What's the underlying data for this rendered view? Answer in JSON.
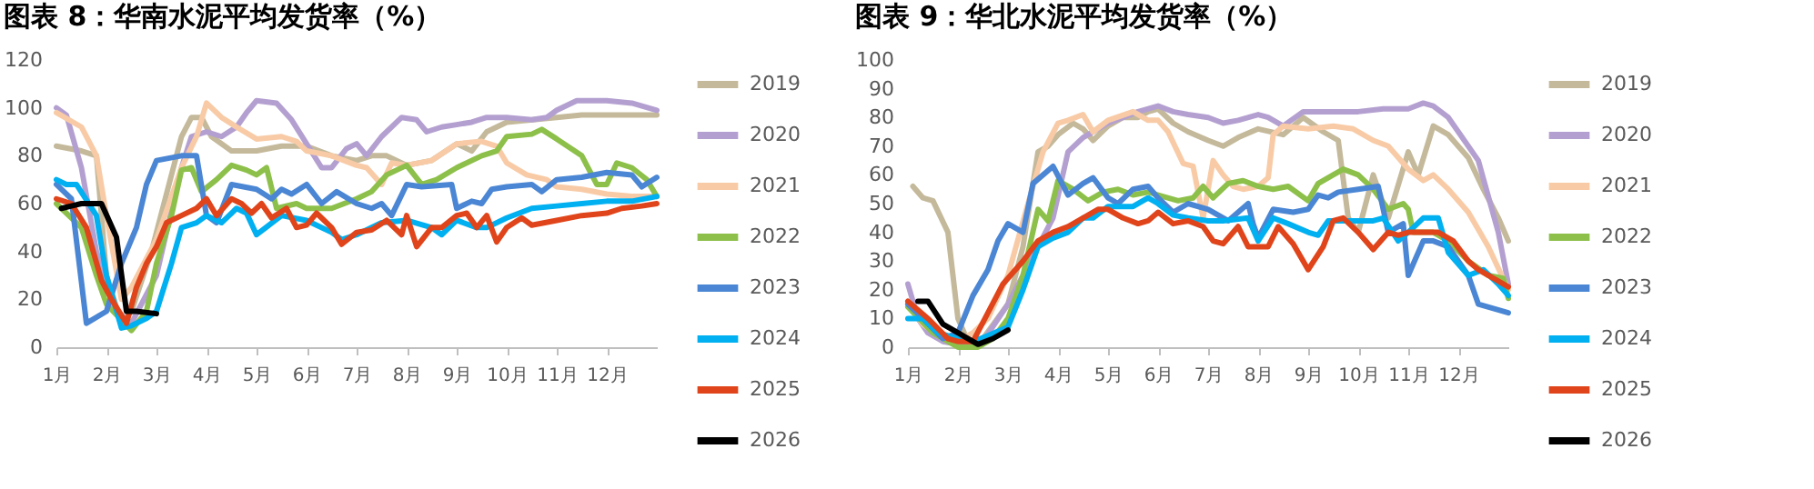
{
  "chart_data": [
    {
      "type": "line",
      "title": "图表 8：华南水泥平均发货率（%）",
      "legend": "right",
      "grid": false,
      "line_style": "solid",
      "marker": "none",
      "xlim": [
        1,
        13
      ],
      "xticks": [
        {
          "value": 1,
          "label": "1月"
        },
        {
          "value": 2,
          "label": "2月"
        },
        {
          "value": 3,
          "label": "3月"
        },
        {
          "value": 4,
          "label": "4月"
        },
        {
          "value": 5,
          "label": "5月"
        },
        {
          "value": 6,
          "label": "6月"
        },
        {
          "value": 7,
          "label": "7月"
        },
        {
          "value": 8,
          "label": "8月"
        },
        {
          "value": 9,
          "label": "9月"
        },
        {
          "value": 10,
          "label": "10月"
        },
        {
          "value": 11,
          "label": "11月"
        },
        {
          "value": 12,
          "label": "12月"
        }
      ],
      "ylim": [
        0,
        120
      ],
      "yticks": [
        0,
        20,
        40,
        60,
        80,
        100,
        120
      ],
      "series": [
        {
          "name": "2019",
          "color": "#c4b99a",
          "x": [
            1.0,
            1.5,
            1.8,
            2.0,
            2.3,
            2.5,
            2.9,
            3.5,
            3.7,
            3.9,
            4.1,
            4.5,
            5.0,
            5.5,
            6.0,
            6.5,
            7.0,
            7.3,
            7.6,
            8.0,
            8.5,
            9.0,
            9.3,
            9.6,
            10.0,
            11.0,
            11.5,
            12.0,
            12.5,
            13.0
          ],
          "values": [
            84,
            82,
            80,
            30,
            10,
            15,
            40,
            88,
            96,
            96,
            88,
            82,
            82,
            84,
            84,
            80,
            78,
            80,
            80,
            76,
            78,
            85,
            82,
            90,
            94,
            96,
            97,
            97,
            97,
            97
          ]
        },
        {
          "name": "2020",
          "color": "#b4a0d0",
          "x": [
            1.0,
            1.2,
            1.5,
            1.8,
            2.2,
            2.5,
            3.0,
            3.5,
            3.7,
            4.0,
            4.3,
            4.6,
            4.8,
            5.0,
            5.4,
            5.7,
            6.0,
            6.3,
            6.5,
            6.8,
            7.0,
            7.2,
            7.5,
            7.9,
            8.2,
            8.4,
            8.7,
            9.0,
            9.3,
            9.6,
            10.0,
            10.5,
            10.8,
            11.0,
            11.4,
            12.0,
            12.5,
            13.0
          ],
          "values": [
            100,
            97,
            75,
            40,
            15,
            10,
            30,
            75,
            88,
            90,
            88,
            92,
            98,
            103,
            102,
            95,
            85,
            75,
            75,
            83,
            85,
            80,
            88,
            96,
            95,
            90,
            92,
            93,
            94,
            96,
            96,
            95,
            96,
            99,
            103,
            103,
            102,
            99
          ]
        },
        {
          "name": "2021",
          "color": "#f8cba6",
          "x": [
            1.0,
            1.5,
            1.8,
            2.0,
            2.3,
            2.5,
            3.0,
            3.5,
            3.8,
            4.0,
            4.3,
            4.6,
            5.0,
            5.5,
            5.8,
            6.0,
            6.5,
            7.0,
            7.2,
            7.5,
            7.7,
            8.0,
            8.5,
            9.0,
            9.5,
            9.8,
            10.0,
            10.4,
            10.8,
            11.0,
            11.5,
            12.0,
            12.5,
            13.0
          ],
          "values": [
            98,
            92,
            80,
            55,
            20,
            25,
            45,
            75,
            88,
            102,
            96,
            92,
            87,
            88,
            86,
            82,
            80,
            76,
            75,
            68,
            77,
            76,
            78,
            85,
            86,
            84,
            77,
            72,
            70,
            67,
            66,
            64,
            63,
            63
          ]
        },
        {
          "name": "2022",
          "color": "#8dc04a",
          "x": [
            1.0,
            1.5,
            1.8,
            2.0,
            2.5,
            2.8,
            3.0,
            3.3,
            3.5,
            3.7,
            3.9,
            4.2,
            4.5,
            4.8,
            5.0,
            5.2,
            5.4,
            5.8,
            6.0,
            6.5,
            7.0,
            7.3,
            7.6,
            8.0,
            8.3,
            8.6,
            9.0,
            9.5,
            9.8,
            10.0,
            10.5,
            10.7,
            11.0,
            11.5,
            11.8,
            12.0,
            12.2,
            12.5,
            12.8,
            13.0
          ],
          "values": [
            60,
            50,
            30,
            18,
            7,
            15,
            35,
            55,
            74,
            75,
            65,
            70,
            76,
            74,
            72,
            75,
            58,
            60,
            58,
            58,
            62,
            65,
            72,
            76,
            68,
            70,
            75,
            80,
            82,
            88,
            89,
            91,
            87,
            80,
            68,
            68,
            77,
            75,
            70,
            63
          ]
        },
        {
          "name": "2023",
          "color": "#4a86d4",
          "x": [
            1.0,
            1.3,
            1.6,
            2.0,
            2.3,
            2.6,
            2.8,
            3.0,
            3.5,
            3.8,
            4.0,
            4.2,
            4.5,
            5.0,
            5.3,
            5.5,
            5.7,
            6.0,
            6.3,
            6.6,
            7.0,
            7.3,
            7.5,
            7.7,
            8.0,
            8.3,
            8.9,
            9.0,
            9.3,
            9.5,
            9.7,
            10.0,
            10.5,
            10.7,
            11.0,
            11.5,
            12.0,
            12.5,
            12.7,
            13.0
          ],
          "values": [
            68,
            62,
            10,
            15,
            35,
            50,
            68,
            78,
            80,
            80,
            55,
            52,
            68,
            66,
            62,
            66,
            64,
            68,
            60,
            65,
            60,
            58,
            60,
            55,
            68,
            67,
            68,
            58,
            61,
            60,
            66,
            67,
            68,
            65,
            70,
            71,
            73,
            72,
            67,
            71
          ]
        },
        {
          "name": "2024",
          "color": "#00b0f0",
          "x": [
            1.0,
            1.2,
            1.4,
            1.8,
            2.0,
            2.3,
            2.5,
            2.8,
            3.0,
            3.3,
            3.5,
            3.8,
            4.0,
            4.3,
            4.6,
            4.8,
            5.0,
            5.5,
            6.0,
            6.5,
            6.7,
            7.0,
            7.5,
            8.0,
            8.5,
            8.7,
            9.0,
            9.4,
            9.6,
            10.0,
            10.5,
            11.0,
            11.5,
            12.0,
            12.5,
            13.0
          ],
          "values": [
            70,
            68,
            68,
            55,
            30,
            8,
            9,
            12,
            15,
            35,
            50,
            52,
            55,
            52,
            58,
            56,
            47,
            55,
            53,
            48,
            45,
            47,
            52,
            53,
            50,
            47,
            53,
            50,
            50,
            54,
            58,
            59,
            60,
            61,
            61,
            63
          ]
        },
        {
          "name": "2025",
          "color": "#e0441a",
          "x": [
            1.0,
            1.3,
            1.6,
            1.9,
            2.1,
            2.4,
            2.6,
            2.8,
            3.0,
            3.2,
            3.5,
            3.8,
            4.0,
            4.2,
            4.5,
            4.7,
            4.9,
            5.1,
            5.3,
            5.6,
            5.8,
            6.0,
            6.2,
            6.5,
            6.7,
            7.0,
            7.3,
            7.6,
            7.9,
            8.0,
            8.2,
            8.5,
            8.7,
            9.0,
            9.2,
            9.4,
            9.6,
            9.8,
            10.0,
            10.3,
            10.5,
            11.0,
            11.5,
            12.0,
            12.3,
            12.7,
            13.0
          ],
          "values": [
            62,
            60,
            50,
            28,
            20,
            10,
            25,
            35,
            42,
            52,
            55,
            58,
            62,
            55,
            62,
            60,
            56,
            60,
            54,
            58,
            50,
            51,
            56,
            50,
            43,
            48,
            49,
            53,
            47,
            55,
            42,
            50,
            50,
            55,
            56,
            50,
            55,
            44,
            50,
            54,
            51,
            53,
            55,
            56,
            58,
            59,
            60
          ]
        },
        {
          "name": "2026",
          "color": "#000000",
          "x": [
            1.1,
            1.3,
            1.5,
            1.9,
            2.2,
            2.4,
            2.6,
            3.0
          ],
          "values": [
            58,
            59,
            60,
            60,
            46,
            15,
            15,
            14
          ]
        }
      ]
    },
    {
      "type": "line",
      "title": "图表 9：华北水泥平均发货率（%）",
      "legend": "right",
      "grid": false,
      "line_style": "solid",
      "marker": "none",
      "xlim": [
        1,
        13
      ],
      "xticks": [
        {
          "value": 1,
          "label": "1月"
        },
        {
          "value": 2,
          "label": "2月"
        },
        {
          "value": 3,
          "label": "3月"
        },
        {
          "value": 4,
          "label": "4月"
        },
        {
          "value": 5,
          "label": "5月"
        },
        {
          "value": 6,
          "label": "6月"
        },
        {
          "value": 7,
          "label": "7月"
        },
        {
          "value": 8,
          "label": "8月"
        },
        {
          "value": 9,
          "label": "9月"
        },
        {
          "value": 10,
          "label": "10月"
        },
        {
          "value": 11,
          "label": "11月"
        },
        {
          "value": 12,
          "label": "12月"
        }
      ],
      "ylim": [
        0,
        100
      ],
      "yticks": [
        0,
        10,
        20,
        30,
        40,
        50,
        60,
        70,
        80,
        90,
        100
      ],
      "series": [
        {
          "name": "2019",
          "color": "#c4b99a",
          "x": [
            1.1,
            1.3,
            1.5,
            1.8,
            2.0,
            2.2,
            2.5,
            3.0,
            3.3,
            3.6,
            3.8,
            4.0,
            4.3,
            4.5,
            4.7,
            5.0,
            5.3,
            5.6,
            5.8,
            6.0,
            6.3,
            6.6,
            7.0,
            7.3,
            7.6,
            8.0,
            8.5,
            8.9,
            9.3,
            9.6,
            9.8,
            10.0,
            10.3,
            10.6,
            11.0,
            11.2,
            11.5,
            11.8,
            12.2,
            12.5,
            12.8,
            13.0
          ],
          "values": [
            56,
            52,
            51,
            40,
            10,
            2,
            3,
            15,
            35,
            68,
            70,
            74,
            78,
            76,
            72,
            77,
            80,
            80,
            82,
            83,
            78,
            75,
            72,
            70,
            73,
            76,
            74,
            80,
            75,
            72,
            45,
            40,
            60,
            45,
            68,
            60,
            77,
            74,
            66,
            55,
            45,
            37
          ]
        },
        {
          "name": "2020",
          "color": "#b4a0d0",
          "x": [
            1.0,
            1.2,
            1.4,
            1.7,
            2.0,
            2.5,
            3.0,
            3.3,
            3.6,
            3.9,
            4.2,
            4.5,
            5.0,
            5.3,
            5.6,
            6.0,
            6.3,
            6.6,
            7.0,
            7.3,
            7.6,
            8.0,
            8.2,
            8.5,
            8.9,
            9.5,
            10.0,
            10.5,
            11.0,
            11.3,
            11.5,
            11.8,
            12.0,
            12.4,
            12.8,
            13.0
          ],
          "values": [
            22,
            10,
            5,
            2,
            1,
            2,
            15,
            25,
            35,
            45,
            68,
            73,
            78,
            80,
            82,
            84,
            82,
            81,
            80,
            78,
            79,
            81,
            80,
            77,
            82,
            82,
            82,
            83,
            83,
            85,
            84,
            80,
            75,
            65,
            40,
            22
          ]
        },
        {
          "name": "2021",
          "color": "#f8cba6",
          "x": [
            1.0,
            1.3,
            1.7,
            2.0,
            2.3,
            2.6,
            3.0,
            3.4,
            3.7,
            4.0,
            4.2,
            4.5,
            4.7,
            5.0,
            5.5,
            5.8,
            6.0,
            6.2,
            6.5,
            6.7,
            6.9,
            7.1,
            7.3,
            7.5,
            7.7,
            8.0,
            8.2,
            8.3,
            8.5,
            9.0,
            9.5,
            9.9,
            10.3,
            10.6,
            11.0,
            11.3,
            11.5,
            11.8,
            12.2,
            12.6,
            13.0
          ],
          "values": [
            15,
            8,
            3,
            2,
            5,
            10,
            25,
            50,
            68,
            78,
            79,
            81,
            75,
            79,
            82,
            79,
            79,
            75,
            64,
            63,
            45,
            65,
            60,
            56,
            55,
            56,
            59,
            74,
            77,
            76,
            77,
            76,
            72,
            70,
            62,
            58,
            60,
            55,
            47,
            35,
            20
          ]
        },
        {
          "name": "2022",
          "color": "#8dc04a",
          "x": [
            1.0,
            1.5,
            2.0,
            2.4,
            2.7,
            3.0,
            3.3,
            3.6,
            3.8,
            4.0,
            4.3,
            4.6,
            4.9,
            5.2,
            5.5,
            5.8,
            6.0,
            6.4,
            6.7,
            6.9,
            7.1,
            7.4,
            7.7,
            8.0,
            8.3,
            8.6,
            9.0,
            9.2,
            9.5,
            9.7,
            10.0,
            10.3,
            10.6,
            10.9,
            11.0,
            11.1,
            11.5,
            11.8,
            12.2,
            12.6,
            12.9,
            13.0
          ],
          "values": [
            14,
            5,
            0,
            0,
            3,
            10,
            25,
            48,
            44,
            58,
            55,
            51,
            54,
            55,
            53,
            54,
            53,
            51,
            52,
            56,
            52,
            57,
            58,
            56,
            55,
            56,
            51,
            57,
            60,
            62,
            60,
            55,
            48,
            50,
            48,
            40,
            40,
            37,
            30,
            25,
            24,
            17
          ]
        },
        {
          "name": "2023",
          "color": "#4a86d4",
          "x": [
            1.0,
            1.3,
            1.7,
            2.0,
            2.3,
            2.6,
            2.8,
            3.0,
            3.3,
            3.5,
            3.9,
            4.2,
            4.5,
            4.7,
            5.0,
            5.2,
            5.5,
            5.8,
            6.0,
            6.3,
            6.6,
            7.0,
            7.4,
            7.8,
            7.9,
            8.0,
            8.3,
            8.7,
            9.0,
            9.2,
            9.4,
            9.6,
            10.0,
            10.4,
            10.6,
            10.9,
            11.0,
            11.3,
            11.5,
            11.8,
            12.2,
            12.4,
            13.0
          ],
          "values": [
            15,
            10,
            3,
            5,
            18,
            27,
            37,
            43,
            40,
            57,
            63,
            53,
            57,
            59,
            52,
            50,
            55,
            56,
            52,
            47,
            50,
            48,
            44,
            50,
            43,
            38,
            48,
            47,
            48,
            53,
            52,
            54,
            55,
            56,
            40,
            43,
            25,
            37,
            37,
            35,
            25,
            15,
            12
          ]
        },
        {
          "name": "2024",
          "color": "#00b0f0",
          "x": [
            1.0,
            1.3,
            1.6,
            2.0,
            2.3,
            2.6,
            3.0,
            3.3,
            3.6,
            3.9,
            4.2,
            4.5,
            4.7,
            5.0,
            5.5,
            5.8,
            6.0,
            6.3,
            6.6,
            7.0,
            7.3,
            7.8,
            8.0,
            8.3,
            8.6,
            9.0,
            9.2,
            9.4,
            10.0,
            10.3,
            10.5,
            10.8,
            11.0,
            11.3,
            11.6,
            11.8,
            12.2,
            12.5,
            12.8,
            13.0
          ],
          "values": [
            10,
            10,
            5,
            3,
            2,
            4,
            7,
            20,
            35,
            38,
            40,
            45,
            45,
            49,
            49,
            52,
            50,
            46,
            45,
            44,
            44,
            45,
            37,
            45,
            43,
            40,
            39,
            44,
            44,
            44,
            45,
            37,
            40,
            45,
            45,
            33,
            25,
            27,
            22,
            18
          ]
        },
        {
          "name": "2025",
          "color": "#e0441a",
          "x": [
            1.0,
            1.4,
            1.8,
            2.0,
            2.3,
            2.6,
            2.9,
            3.3,
            3.6,
            3.9,
            4.2,
            4.5,
            4.8,
            5.0,
            5.3,
            5.6,
            5.8,
            6.0,
            6.3,
            6.6,
            6.9,
            7.1,
            7.3,
            7.6,
            7.8,
            8.0,
            8.2,
            8.4,
            8.7,
            8.9,
            9.0,
            9.3,
            9.5,
            9.7,
            10.0,
            10.3,
            10.6,
            10.8,
            11.0,
            11.3,
            11.6,
            11.9,
            12.2,
            12.4,
            12.7,
            13.0
          ],
          "values": [
            16,
            10,
            3,
            2,
            2,
            12,
            22,
            30,
            37,
            40,
            42,
            45,
            48,
            48,
            45,
            43,
            44,
            47,
            43,
            44,
            42,
            37,
            36,
            42,
            35,
            35,
            35,
            42,
            36,
            30,
            27,
            35,
            44,
            45,
            40,
            34,
            40,
            39,
            40,
            40,
            40,
            37,
            30,
            27,
            24,
            21
          ]
        },
        {
          "name": "2026",
          "color": "#000000",
          "x": [
            1.2,
            1.4,
            1.7,
            2.0,
            2.4,
            2.7,
            3.0
          ],
          "values": [
            16,
            16,
            8,
            5,
            1,
            3,
            6
          ]
        }
      ]
    }
  ]
}
